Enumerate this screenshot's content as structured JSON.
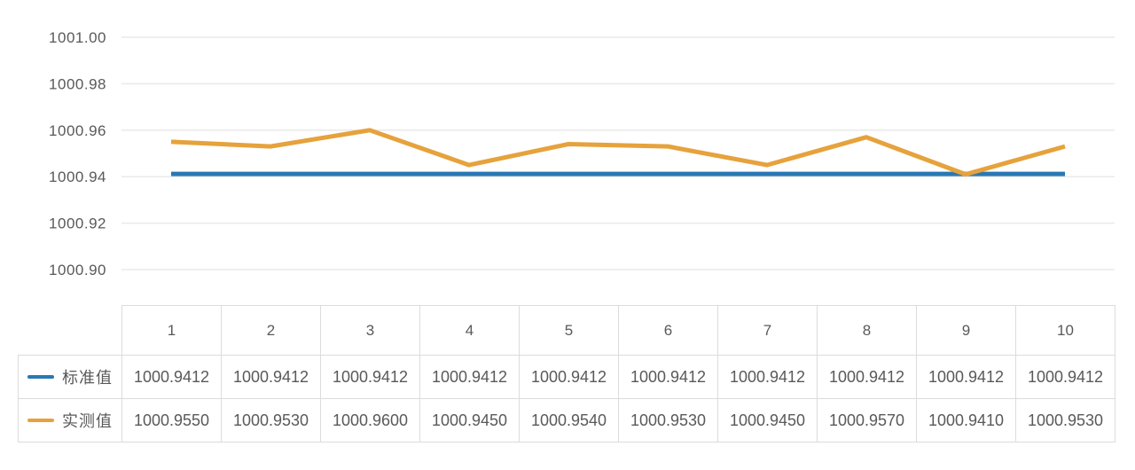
{
  "chart_data": {
    "type": "line",
    "title": "",
    "xlabel": "",
    "ylabel": "",
    "x_categories": [
      "1",
      "2",
      "3",
      "4",
      "5",
      "6",
      "7",
      "8",
      "9",
      "10"
    ],
    "y_ticks": [
      "1001.00",
      "1000.98",
      "1000.96",
      "1000.94",
      "1000.92",
      "1000.90"
    ],
    "ylim": [
      1000.9,
      1001.0
    ],
    "grid": true,
    "legend_position": "table-left",
    "series": [
      {
        "name": "标准值",
        "color": "#2878b4",
        "values": [
          1000.9412,
          1000.9412,
          1000.9412,
          1000.9412,
          1000.9412,
          1000.9412,
          1000.9412,
          1000.9412,
          1000.9412,
          1000.9412
        ]
      },
      {
        "name": "实测值",
        "color": "#e6a23c",
        "values": [
          1000.955,
          1000.953,
          1000.96,
          1000.945,
          1000.954,
          1000.953,
          1000.945,
          1000.957,
          1000.941,
          1000.953
        ]
      }
    ],
    "colors": {
      "gridline": "#eaeaea",
      "tick_text": "#595959",
      "table_border": "#dcdcdc"
    }
  },
  "table": {
    "columns": [
      "1",
      "2",
      "3",
      "4",
      "5",
      "6",
      "7",
      "8",
      "9",
      "10"
    ],
    "rows": [
      {
        "cells": [
          "1000.9412",
          "1000.9412",
          "1000.9412",
          "1000.9412",
          "1000.9412",
          "1000.9412",
          "1000.9412",
          "1000.9412",
          "1000.9412",
          "1000.9412"
        ]
      },
      {
        "cells": [
          "1000.9550",
          "1000.9530",
          "1000.9600",
          "1000.9450",
          "1000.9540",
          "1000.9530",
          "1000.9450",
          "1000.9570",
          "1000.9410",
          "1000.9530"
        ]
      }
    ]
  }
}
